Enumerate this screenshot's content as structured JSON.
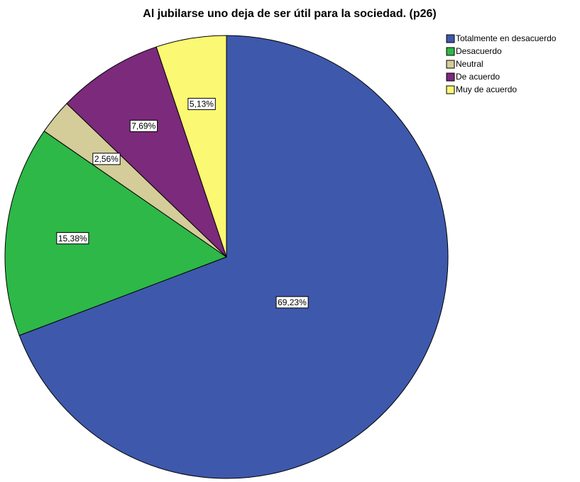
{
  "chart_data": {
    "type": "pie",
    "title": "Al jubilarse uno deja de ser útil para la sociedad. (p26)",
    "categories": [
      "Totalmente en desacuerdo",
      "Desacuerdo",
      "Neutral",
      "De acuerdo",
      "Muy de acuerdo"
    ],
    "values": [
      69.23,
      15.38,
      2.56,
      7.69,
      5.13
    ],
    "value_labels": [
      "69,23%",
      "15,38%",
      "2,56%",
      "7,69%",
      "5,13%"
    ],
    "colors": [
      "#3e58ac",
      "#2eb848",
      "#d4cc99",
      "#7b2a7c",
      "#fbf873"
    ],
    "legend": "top-right"
  }
}
